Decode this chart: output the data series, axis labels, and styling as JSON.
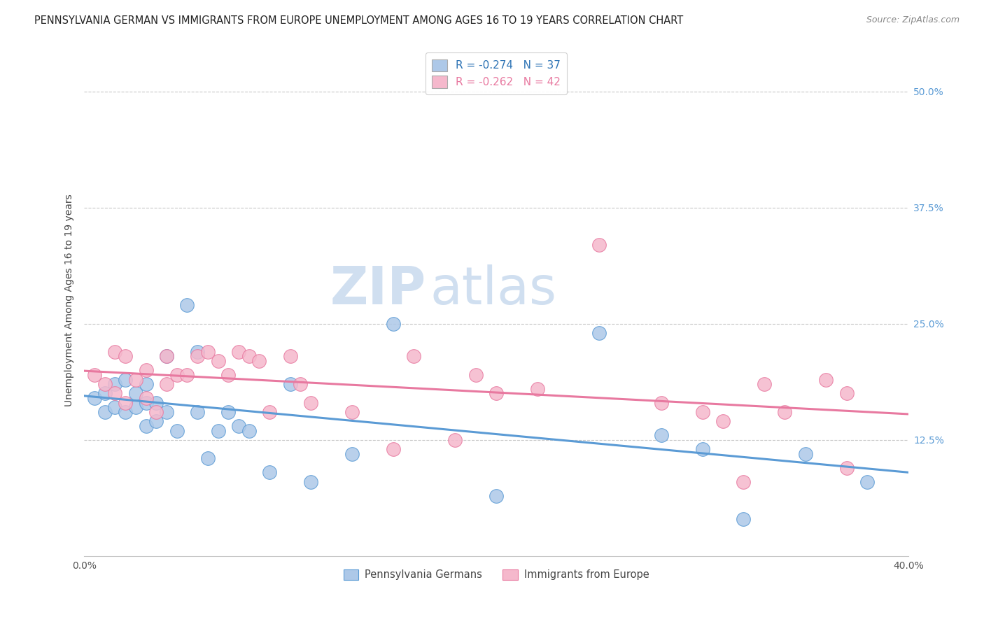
{
  "title": "PENNSYLVANIA GERMAN VS IMMIGRANTS FROM EUROPE UNEMPLOYMENT AMONG AGES 16 TO 19 YEARS CORRELATION CHART",
  "source": "Source: ZipAtlas.com",
  "ylabel": "Unemployment Among Ages 16 to 19 years",
  "ytick_labels": [
    "50.0%",
    "37.5%",
    "25.0%",
    "12.5%"
  ],
  "ytick_values": [
    0.5,
    0.375,
    0.25,
    0.125
  ],
  "xlim": [
    0.0,
    0.4
  ],
  "ylim": [
    0.0,
    0.55
  ],
  "legend_r1": "R = -0.274",
  "legend_n1": "N = 37",
  "legend_r2": "R = -0.262",
  "legend_n2": "N = 42",
  "label1": "Pennsylvania Germans",
  "label2": "Immigrants from Europe",
  "color1": "#adc8e8",
  "color2": "#f5b8cc",
  "line_color1": "#5b9bd5",
  "line_color2": "#e879a0",
  "text_color": "#2e74b5",
  "watermark_zip": "ZIP",
  "watermark_atlas": "atlas",
  "blue_x": [
    0.005,
    0.01,
    0.01,
    0.015,
    0.015,
    0.02,
    0.02,
    0.025,
    0.025,
    0.03,
    0.03,
    0.03,
    0.035,
    0.035,
    0.04,
    0.04,
    0.045,
    0.05,
    0.055,
    0.055,
    0.06,
    0.065,
    0.07,
    0.075,
    0.08,
    0.09,
    0.1,
    0.11,
    0.13,
    0.15,
    0.2,
    0.25,
    0.28,
    0.3,
    0.32,
    0.35,
    0.38
  ],
  "blue_y": [
    0.17,
    0.155,
    0.175,
    0.16,
    0.185,
    0.155,
    0.19,
    0.175,
    0.16,
    0.185,
    0.165,
    0.14,
    0.165,
    0.145,
    0.215,
    0.155,
    0.135,
    0.27,
    0.155,
    0.22,
    0.105,
    0.135,
    0.155,
    0.14,
    0.135,
    0.09,
    0.185,
    0.08,
    0.11,
    0.25,
    0.065,
    0.24,
    0.13,
    0.115,
    0.04,
    0.11,
    0.08
  ],
  "pink_x": [
    0.005,
    0.01,
    0.015,
    0.015,
    0.02,
    0.02,
    0.025,
    0.03,
    0.03,
    0.035,
    0.04,
    0.04,
    0.045,
    0.05,
    0.055,
    0.06,
    0.065,
    0.07,
    0.075,
    0.08,
    0.085,
    0.09,
    0.1,
    0.105,
    0.11,
    0.13,
    0.15,
    0.16,
    0.18,
    0.19,
    0.2,
    0.22,
    0.25,
    0.28,
    0.3,
    0.31,
    0.32,
    0.33,
    0.34,
    0.36,
    0.37,
    0.37
  ],
  "pink_y": [
    0.195,
    0.185,
    0.22,
    0.175,
    0.215,
    0.165,
    0.19,
    0.2,
    0.17,
    0.155,
    0.215,
    0.185,
    0.195,
    0.195,
    0.215,
    0.22,
    0.21,
    0.195,
    0.22,
    0.215,
    0.21,
    0.155,
    0.215,
    0.185,
    0.165,
    0.155,
    0.115,
    0.215,
    0.125,
    0.195,
    0.175,
    0.18,
    0.335,
    0.165,
    0.155,
    0.145,
    0.08,
    0.185,
    0.155,
    0.19,
    0.095,
    0.175
  ],
  "grid_color": "#c8c8c8",
  "bg_color": "#ffffff",
  "title_fontsize": 10.5,
  "source_fontsize": 9,
  "axis_fontsize": 10,
  "tick_fontsize": 10,
  "legend_fontsize": 11,
  "watermark_fontsize_zip": 54,
  "watermark_fontsize_atlas": 54,
  "watermark_color": "#d0dff0",
  "xtick_major": [
    0.0,
    0.1,
    0.2,
    0.3,
    0.4
  ]
}
